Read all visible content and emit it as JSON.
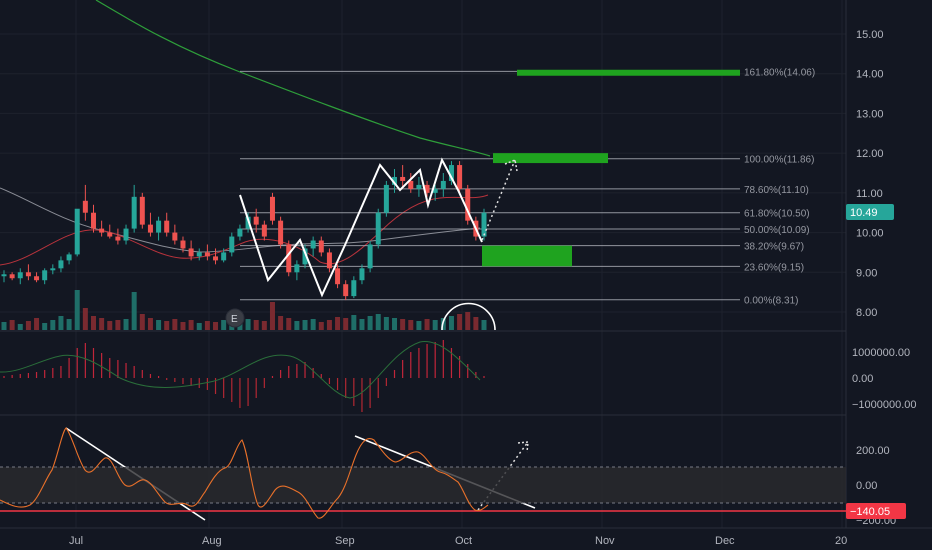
{
  "colors": {
    "background": "#131722",
    "up": "#26a69a",
    "down": "#ef5350",
    "ma200": "#2e9e3a",
    "fib": "#b2b5be",
    "target_green": "#1fa31f",
    "rsi_line": "#e8702a",
    "price_tag": "#26a69a",
    "cci_tag": "#f23645",
    "macd_hist_neg": "#b22833",
    "macd_hist_pos": "#c2263a",
    "signal_line": "#2a6e3a",
    "grid": "#1e222d"
  },
  "price_axis": {
    "labels": [
      "15.00",
      "14.00",
      "13.00",
      "12.00",
      "11.00",
      "10.00",
      "9.00",
      "8.00"
    ],
    "current_price": "10.49"
  },
  "macd_axis": {
    "labels": [
      "1000000.00",
      "0.00",
      "−1000000.00"
    ]
  },
  "cci_axis": {
    "labels": [
      "200.00",
      "0.00",
      "−200.00"
    ],
    "current_value": "−140.05"
  },
  "time_axis": {
    "labels": [
      "Jul",
      "Aug",
      "Sep",
      "Oct",
      "Nov",
      "Dec",
      "20"
    ]
  },
  "fib_levels": [
    {
      "label": "161.80%(14.06)",
      "price": 14.06
    },
    {
      "label": "100.00%(11.86)",
      "price": 11.86
    },
    {
      "label": "78.60%(11.10)",
      "price": 11.1
    },
    {
      "label": "61.80%(10.50)",
      "price": 10.5
    },
    {
      "label": "50.00%(10.09)",
      "price": 10.09
    },
    {
      "label": "38.20%(9.67)",
      "price": 9.67
    },
    {
      "label": "23.60%(9.15)",
      "price": 9.15
    },
    {
      "label": "0.00%(8.31)",
      "price": 8.31
    }
  ],
  "earnings_marker": "E",
  "chart_data": {
    "type": "candlestick",
    "x_axis": [
      "Jul",
      "Aug",
      "Sep",
      "Oct",
      "Nov",
      "Dec",
      "20"
    ],
    "y_range": [
      7.6,
      15.6
    ],
    "fib_retracement": {
      "low": 8.31,
      "high": 11.86,
      "levels": [
        0,
        23.6,
        38.2,
        50,
        61.8,
        78.6,
        100,
        161.8
      ]
    },
    "target_zones": [
      {
        "from": 13.95,
        "to": 14.1
      },
      {
        "from": 11.75,
        "to": 12.0
      },
      {
        "from": 9.15,
        "to": 9.67
      }
    ],
    "last_price": 10.49,
    "ohlc_approx": [
      [
        8.9,
        9.05,
        8.75,
        8.95
      ],
      [
        8.95,
        9.0,
        8.8,
        8.85
      ],
      [
        8.85,
        9.1,
        8.7,
        9.0
      ],
      [
        9.0,
        9.2,
        8.8,
        8.9
      ],
      [
        8.9,
        9.0,
        8.75,
        8.8
      ],
      [
        8.8,
        9.1,
        8.7,
        9.05
      ],
      [
        9.05,
        9.2,
        8.95,
        9.1
      ],
      [
        9.1,
        9.4,
        9.0,
        9.3
      ],
      [
        9.3,
        9.5,
        9.2,
        9.45
      ],
      [
        9.45,
        10.5,
        9.4,
        10.6
      ],
      [
        10.8,
        11.2,
        10.3,
        10.5
      ],
      [
        10.5,
        10.7,
        10.0,
        10.1
      ],
      [
        10.1,
        10.3,
        9.9,
        10.0
      ],
      [
        10.0,
        10.2,
        9.85,
        9.9
      ],
      [
        9.9,
        10.1,
        9.7,
        9.8
      ],
      [
        9.8,
        10.2,
        9.7,
        10.1
      ],
      [
        10.1,
        11.2,
        10.0,
        10.9
      ],
      [
        10.9,
        11.0,
        10.1,
        10.2
      ],
      [
        10.2,
        10.5,
        9.9,
        10.0
      ],
      [
        10.0,
        10.4,
        9.8,
        10.3
      ],
      [
        10.3,
        10.5,
        9.9,
        10.0
      ],
      [
        10.0,
        10.2,
        9.7,
        9.8
      ],
      [
        9.8,
        9.9,
        9.5,
        9.6
      ],
      [
        9.6,
        9.8,
        9.3,
        9.4
      ],
      [
        9.4,
        9.6,
        9.3,
        9.5
      ],
      [
        9.5,
        9.7,
        9.3,
        9.4
      ],
      [
        9.4,
        9.6,
        9.2,
        9.3
      ],
      [
        9.3,
        9.6,
        9.25,
        9.5
      ],
      [
        9.5,
        10.0,
        9.4,
        9.9
      ],
      [
        9.9,
        10.2,
        9.8,
        10.1
      ],
      [
        10.1,
        10.5,
        10.0,
        10.4
      ],
      [
        10.4,
        10.6,
        10.0,
        10.2
      ],
      [
        10.2,
        10.3,
        9.8,
        9.9
      ],
      [
        10.9,
        11.0,
        10.2,
        10.3
      ],
      [
        10.3,
        10.4,
        9.6,
        9.7
      ],
      [
        9.7,
        9.8,
        8.9,
        9.0
      ],
      [
        9.0,
        9.3,
        8.8,
        9.2
      ],
      [
        9.2,
        9.7,
        9.1,
        9.6
      ],
      [
        9.6,
        9.9,
        9.4,
        9.8
      ],
      [
        9.8,
        9.9,
        9.4,
        9.5
      ],
      [
        9.5,
        9.6,
        9.0,
        9.1
      ],
      [
        9.1,
        9.2,
        8.6,
        8.7
      ],
      [
        8.7,
        8.8,
        8.3,
        8.4
      ],
      [
        8.4,
        8.9,
        8.35,
        8.8
      ],
      [
        8.8,
        9.2,
        8.7,
        9.1
      ],
      [
        9.1,
        9.8,
        9.0,
        9.7
      ],
      [
        9.7,
        10.6,
        9.6,
        10.5
      ],
      [
        10.5,
        11.3,
        10.4,
        11.2
      ],
      [
        11.2,
        11.6,
        11.0,
        11.4
      ],
      [
        11.4,
        11.7,
        11.1,
        11.3
      ],
      [
        11.3,
        11.5,
        11.0,
        11.1
      ],
      [
        11.1,
        11.4,
        10.9,
        11.2
      ],
      [
        11.2,
        11.3,
        10.9,
        11.0
      ],
      [
        11.0,
        11.2,
        10.8,
        11.1
      ],
      [
        11.1,
        11.5,
        10.9,
        11.3
      ],
      [
        11.3,
        11.8,
        11.2,
        11.7
      ],
      [
        11.7,
        11.8,
        11.0,
        11.1
      ],
      [
        11.1,
        11.2,
        10.2,
        10.3
      ],
      [
        10.3,
        10.4,
        9.8,
        9.9
      ],
      [
        9.9,
        10.6,
        9.8,
        10.5
      ]
    ]
  }
}
